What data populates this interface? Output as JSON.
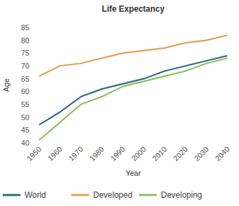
{
  "chart_data": {
    "type": "line",
    "title": "Life Expectancy",
    "x_label": "Year",
    "y_label": "Age",
    "categories": [
      "1950",
      "1960",
      "1970",
      "1980",
      "1990",
      "2000",
      "2010",
      "2020",
      "2030",
      "2040"
    ],
    "series": [
      {
        "name": "World",
        "color": "#2f6c7d",
        "values": [
          47,
          52,
          58,
          61,
          63,
          65,
          68,
          70,
          72,
          74
        ]
      },
      {
        "name": "Developed",
        "color": "#e3a052",
        "values": [
          66,
          70,
          71,
          73,
          75,
          76,
          77,
          79,
          80,
          82
        ]
      },
      {
        "name": "Developing",
        "color": "#8dbf5b",
        "values": [
          41,
          48,
          55,
          58,
          62,
          64,
          66,
          68,
          71,
          73
        ]
      }
    ],
    "ylim": [
      40,
      85
    ],
    "yticks": [
      40,
      45,
      50,
      55,
      60,
      65,
      70,
      75,
      80,
      85
    ],
    "grid": false,
    "legend": "bottom"
  }
}
